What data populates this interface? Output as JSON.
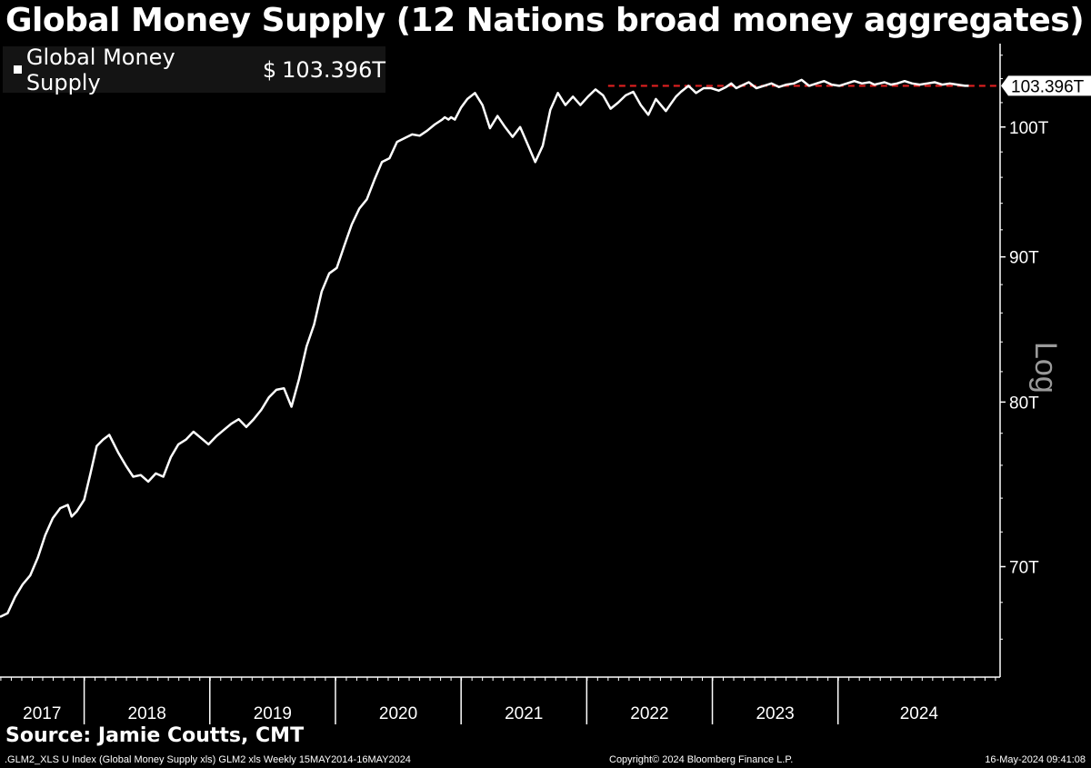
{
  "title": "Global Money Supply (12 Nations broad money aggregates)",
  "legend": {
    "name": "Global Money Supply",
    "currency": "$",
    "value": "103.396T"
  },
  "scale_label": "Log",
  "source": "Source: Jamie Coutts, CMT",
  "footer": {
    "left": ".GLM2_XLS U Index (Global Money Supply xls) GLM2 xls  Weekly 15MAY2014-16MAY2024",
    "center": "Copyright© 2024 Bloomberg Finance L.P.",
    "right": "16-May-2024 09:41:08"
  },
  "colors": {
    "background": "#000000",
    "line": "#ffffff",
    "reference_line": "#e02020",
    "legend_bg": "#141414"
  },
  "chart_data": {
    "type": "line",
    "scale": "log",
    "ylim": [
      64,
      107
    ],
    "y_ticks": [
      70,
      80,
      90,
      100
    ],
    "y_tick_labels": [
      "70T",
      "80T",
      "90T",
      "100T"
    ],
    "xlim": [
      2016.66,
      2024.62
    ],
    "x_labels": [
      "2017",
      "2018",
      "2019",
      "2020",
      "2021",
      "2022",
      "2023",
      "2024"
    ],
    "year_boundaries": [
      2017.33,
      2018.33,
      2019.33,
      2020.33,
      2021.33,
      2022.33,
      2023.33
    ],
    "last_value_label": "103.396T",
    "reference_line": {
      "value": 103.4,
      "x_start": 2021.5,
      "style": "dashed"
    },
    "series": [
      {
        "name": "Global Money Supply",
        "x": [
          2016.66,
          2016.72,
          2016.78,
          2016.84,
          2016.9,
          2016.96,
          2017.02,
          2017.08,
          2017.14,
          2017.2,
          2017.23,
          2017.27,
          2017.33,
          2017.38,
          2017.43,
          2017.48,
          2017.53,
          2017.6,
          2017.66,
          2017.72,
          2017.78,
          2017.84,
          2017.9,
          2017.96,
          2018.02,
          2018.08,
          2018.14,
          2018.2,
          2018.26,
          2018.32,
          2018.38,
          2018.44,
          2018.5,
          2018.56,
          2018.62,
          2018.68,
          2018.74,
          2018.8,
          2018.86,
          2018.92,
          2018.98,
          2019.04,
          2019.1,
          2019.16,
          2019.22,
          2019.28,
          2019.34,
          2019.4,
          2019.46,
          2019.52,
          2019.58,
          2019.64,
          2019.7,
          2019.76,
          2019.82,
          2019.88,
          2019.94,
          2020.0,
          2020.06,
          2020.12,
          2020.18,
          2020.2,
          2020.23,
          2020.25,
          2020.28,
          2020.3,
          2020.33,
          2020.38,
          2020.44,
          2020.5,
          2020.56,
          2020.62,
          2020.68,
          2020.74,
          2020.8,
          2020.86,
          2020.92,
          2020.98,
          2021.04,
          2021.1,
          2021.16,
          2021.22,
          2021.28,
          2021.34,
          2021.4,
          2021.46,
          2021.52,
          2021.58,
          2021.64,
          2021.7,
          2021.76,
          2021.82,
          2021.88,
          2021.92,
          2021.96,
          2022.0,
          2022.04,
          2022.08,
          2022.14,
          2022.2,
          2022.26,
          2022.32,
          2022.38,
          2022.44,
          2022.48,
          2022.52,
          2022.56,
          2022.62,
          2022.68,
          2022.74,
          2022.8,
          2022.86,
          2022.92,
          2022.98,
          2023.04,
          2023.1,
          2023.16,
          2023.22,
          2023.28,
          2023.34,
          2023.4,
          2023.46,
          2023.52,
          2023.58,
          2023.62,
          2023.66,
          2023.7,
          2023.75,
          2023.8,
          2023.86,
          2023.92,
          2023.98,
          2024.04,
          2024.1,
          2024.16,
          2024.22,
          2024.28,
          2024.34,
          2024.37
        ],
        "values": [
          67.2,
          67.4,
          68.3,
          69.0,
          69.5,
          70.5,
          71.8,
          72.8,
          73.4,
          73.6,
          72.9,
          73.2,
          73.9,
          75.5,
          77.2,
          77.6,
          77.9,
          76.8,
          76.0,
          75.3,
          75.4,
          75.0,
          75.5,
          75.3,
          76.5,
          77.3,
          77.6,
          78.1,
          77.7,
          77.3,
          77.8,
          78.2,
          78.6,
          78.9,
          78.4,
          78.9,
          79.5,
          80.3,
          80.8,
          80.9,
          79.7,
          81.5,
          83.7,
          85.2,
          87.5,
          88.8,
          89.2,
          90.8,
          92.4,
          93.6,
          94.3,
          95.8,
          97.2,
          97.5,
          98.8,
          99.1,
          99.4,
          99.3,
          99.7,
          100.2,
          100.6,
          100.8,
          100.6,
          100.8,
          100.6,
          101.0,
          101.6,
          102.3,
          102.8,
          101.8,
          99.9,
          100.9,
          100.0,
          99.2,
          100.0,
          98.6,
          97.2,
          98.5,
          101.4,
          102.8,
          101.8,
          102.5,
          101.8,
          102.5,
          103.1,
          102.6,
          101.5,
          102.0,
          102.6,
          102.9,
          101.8,
          101.0,
          102.3,
          101.8,
          101.3,
          101.9,
          102.5,
          102.9,
          103.4,
          102.8,
          103.2,
          103.2,
          103.0,
          103.3,
          103.6,
          103.2,
          103.4,
          103.7,
          103.2,
          103.4,
          103.6,
          103.3,
          103.5,
          103.6,
          103.9,
          103.4,
          103.6,
          103.8,
          103.5,
          103.4,
          103.6,
          103.8,
          103.6,
          103.7,
          103.5,
          103.6,
          103.7,
          103.5,
          103.6,
          103.8,
          103.6,
          103.5,
          103.6,
          103.7,
          103.5,
          103.6,
          103.5,
          103.4,
          103.4
        ]
      }
    ]
  }
}
